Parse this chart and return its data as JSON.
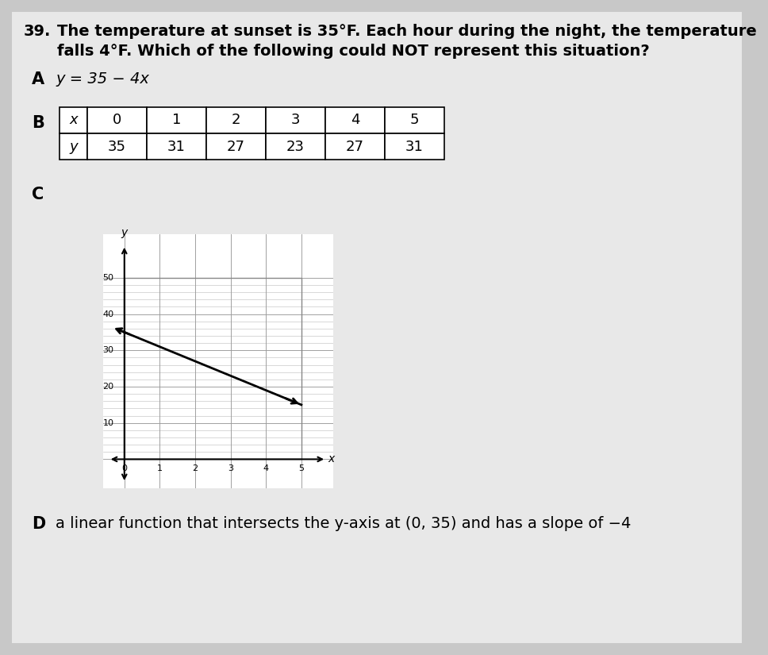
{
  "background_color": "#c8c8c8",
  "page_bg": "#e8e8e8",
  "question_number": "39.",
  "question_text_line1": "The temperature at sunset is 35°F. Each hour during the night, the temperature",
  "question_text_line2": "falls 4°F. Which of the following could NOT represent this situation?",
  "option_A_label": "A",
  "option_A_text": "y = 35 − 4x",
  "option_B_label": "B",
  "table_x_header": "x",
  "table_y_header": "y",
  "table_x_values": [
    0,
    1,
    2,
    3,
    4,
    5
  ],
  "table_y_values": [
    35,
    31,
    27,
    23,
    27,
    31
  ],
  "option_C_label": "C",
  "graph_y_ticks": [
    10,
    20,
    30,
    40,
    50
  ],
  "graph_x_ticks": [
    0,
    1,
    2,
    3,
    4,
    5
  ],
  "option_D_label": "D",
  "option_D_text": "a linear function that intersects the y-axis at (0, 35) and has a slope of −4",
  "question_fontsize": 14,
  "label_fontsize": 15,
  "body_fontsize": 14,
  "table_fontsize": 13,
  "graph_tick_fontsize": 8,
  "graph_axis_label_fontsize": 10
}
